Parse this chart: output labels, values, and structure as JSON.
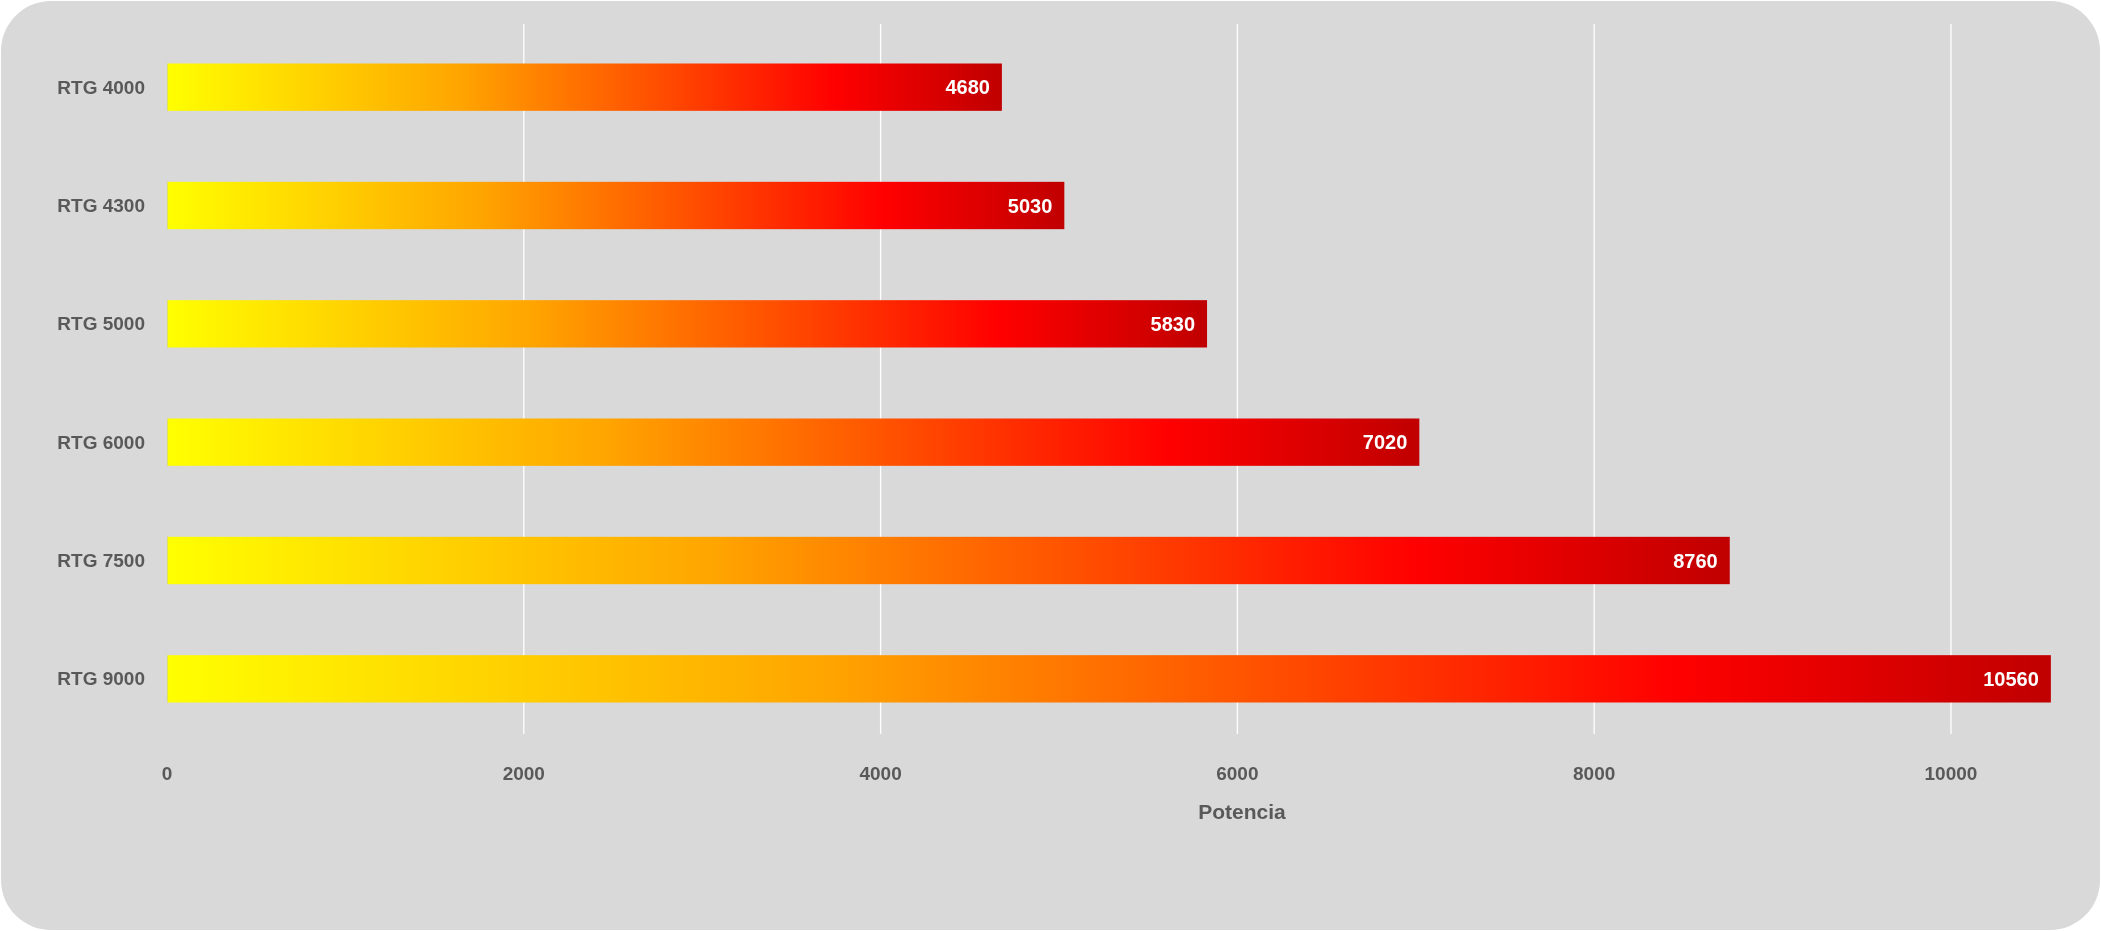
{
  "chart_data": {
    "type": "bar",
    "orientation": "horizontal",
    "xlabel": "Potencia",
    "categories": [
      "RTG 4000",
      "RTG 4300",
      "RTG 5000",
      "RTG 6000",
      "RTG 7500",
      "RTG 9000"
    ],
    "series": [
      {
        "values": [
          4680,
          5030,
          5830,
          7020,
          8760,
          10560
        ]
      }
    ],
    "xlim": [
      0,
      10600
    ],
    "xticks": [
      0,
      2000,
      4000,
      6000,
      8000,
      10000
    ],
    "grid": "x",
    "data_labels": true
  }
}
